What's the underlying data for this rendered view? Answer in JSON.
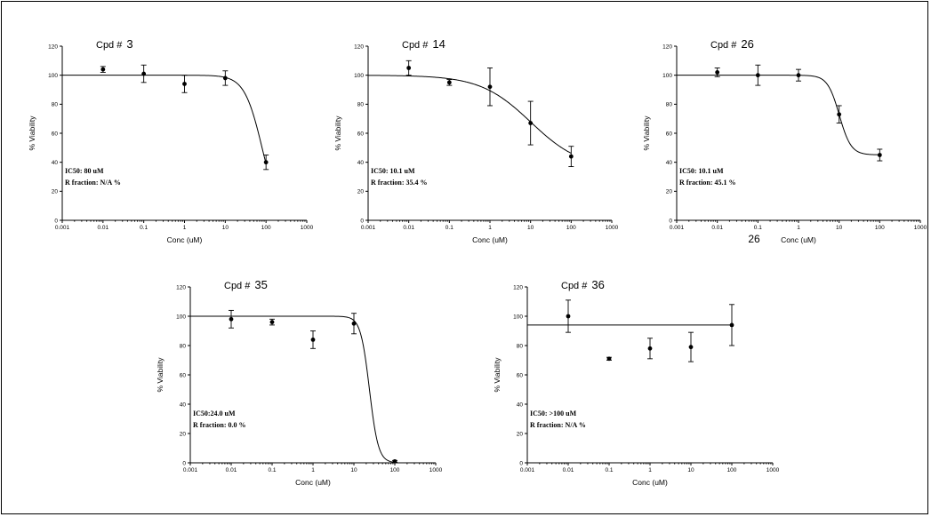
{
  "chart_data": [
    {
      "type": "scatter",
      "title_prefix": "Cpd #",
      "compound": "3",
      "xlabel": "Conc (uM)",
      "ylabel": "% Viability",
      "x_scale": "log",
      "xlim": [
        0.001,
        1000
      ],
      "ylim": [
        0,
        120
      ],
      "x_tick_labels": [
        "0.001",
        "0.01",
        "0.1",
        "1",
        "10",
        "100",
        "1000"
      ],
      "y_ticks": [
        0,
        20,
        40,
        60,
        80,
        100,
        120
      ],
      "grid": false,
      "stats": [
        "IC50: 80 uM",
        "R fraction: N/A %"
      ],
      "extra_label": "",
      "points": [
        {
          "x": 0.01,
          "y": 104,
          "err": 2
        },
        {
          "x": 0.1,
          "y": 101,
          "err": 6
        },
        {
          "x": 1,
          "y": 94,
          "err": 6
        },
        {
          "x": 10,
          "y": 98,
          "err": 5
        },
        {
          "x": 100,
          "y": 40,
          "err": 5
        }
      ],
      "fit": {
        "kind": "sigmoid",
        "top": 100,
        "bottom": 0,
        "ic50": 80,
        "hill": 2.0
      }
    },
    {
      "type": "scatter",
      "title_prefix": "Cpd #",
      "compound": "14",
      "xlabel": "Conc (uM)",
      "ylabel": "% Viability",
      "x_scale": "log",
      "xlim": [
        0.001,
        1000
      ],
      "ylim": [
        0,
        120
      ],
      "x_tick_labels": [
        "0.001",
        "0.01",
        "0.1",
        "1",
        "10",
        "100",
        "1000"
      ],
      "y_ticks": [
        0,
        20,
        40,
        60,
        80,
        100,
        120
      ],
      "grid": false,
      "stats": [
        "IC50: 10.1 uM",
        "R fraction: 35.4 %"
      ],
      "extra_label": "",
      "points": [
        {
          "x": 0.01,
          "y": 105,
          "err": 5
        },
        {
          "x": 0.1,
          "y": 95,
          "err": 2
        },
        {
          "x": 1,
          "y": 92,
          "err": 13
        },
        {
          "x": 10,
          "y": 67,
          "err": 15
        },
        {
          "x": 100,
          "y": 44,
          "err": 7
        }
      ],
      "fit": {
        "kind": "sigmoid",
        "top": 100,
        "bottom": 35.4,
        "ic50": 10.1,
        "hill": 0.7
      }
    },
    {
      "type": "scatter",
      "title_prefix": "Cpd #",
      "compound": "26",
      "xlabel": "Conc (uM)",
      "ylabel": "% Viability",
      "x_scale": "log",
      "xlim": [
        0.001,
        1000
      ],
      "ylim": [
        0,
        120
      ],
      "x_tick_labels": [
        "0.001",
        "0.01",
        "0.1",
        "1",
        "10",
        "100",
        "1000"
      ],
      "y_ticks": [
        0,
        20,
        40,
        60,
        80,
        100,
        120
      ],
      "grid": false,
      "stats": [
        "IC50: 10.1 uM",
        "R fraction: 45.1 %"
      ],
      "extra_label": "26",
      "points": [
        {
          "x": 0.01,
          "y": 102,
          "err": 3
        },
        {
          "x": 0.1,
          "y": 100,
          "err": 7
        },
        {
          "x": 1,
          "y": 100,
          "err": 4
        },
        {
          "x": 10,
          "y": 73,
          "err": 6
        },
        {
          "x": 100,
          "y": 45,
          "err": 4
        }
      ],
      "fit": {
        "kind": "sigmoid",
        "top": 100,
        "bottom": 45.1,
        "ic50": 10.1,
        "hill": 3.0
      }
    },
    {
      "type": "scatter",
      "title_prefix": "Cpd #",
      "compound": "35",
      "xlabel": "Conc (uM)",
      "ylabel": "% Viability",
      "x_scale": "log",
      "xlim": [
        0.001,
        1000
      ],
      "ylim": [
        0,
        120
      ],
      "x_tick_labels": [
        "0.001",
        "0.01",
        "0.1",
        "1",
        "10",
        "100",
        "1000"
      ],
      "y_ticks": [
        0,
        20,
        40,
        60,
        80,
        100,
        120
      ],
      "grid": false,
      "stats": [
        "IC50:24.0 uM",
        "R fraction: 0.0 %"
      ],
      "extra_label": "",
      "points": [
        {
          "x": 0.01,
          "y": 98,
          "err": 6
        },
        {
          "x": 0.1,
          "y": 96,
          "err": 2
        },
        {
          "x": 1,
          "y": 84,
          "err": 6
        },
        {
          "x": 10,
          "y": 95,
          "err": 7
        },
        {
          "x": 100,
          "y": 1,
          "err": 0.6
        }
      ],
      "fit": {
        "kind": "sigmoid",
        "top": 100,
        "bottom": 0,
        "ic50": 24.0,
        "hill": 4.0
      }
    },
    {
      "type": "scatter",
      "title_prefix": "Cpd #",
      "compound": "36",
      "xlabel": "Conc (uM)",
      "ylabel": "% Viability",
      "x_scale": "log",
      "xlim": [
        0.001,
        1000
      ],
      "ylim": [
        0,
        120
      ],
      "x_tick_labels": [
        "0.001",
        "0.01",
        "0.1",
        "1",
        "10",
        "100",
        "1000"
      ],
      "y_ticks": [
        0,
        20,
        40,
        60,
        80,
        100,
        120
      ],
      "grid": false,
      "stats": [
        "IC50: >100 uM",
        "R fraction: N/A %"
      ],
      "extra_label": "",
      "points": [
        {
          "x": 0.01,
          "y": 100,
          "err": 11
        },
        {
          "x": 0.1,
          "y": 71,
          "err": 1
        },
        {
          "x": 1,
          "y": 78,
          "err": 7
        },
        {
          "x": 10,
          "y": 79,
          "err": 10
        },
        {
          "x": 100,
          "y": 94,
          "err": 14
        }
      ],
      "fit": {
        "kind": "flat",
        "value": 94,
        "x_from": 0.001,
        "x_to": 100
      }
    }
  ]
}
